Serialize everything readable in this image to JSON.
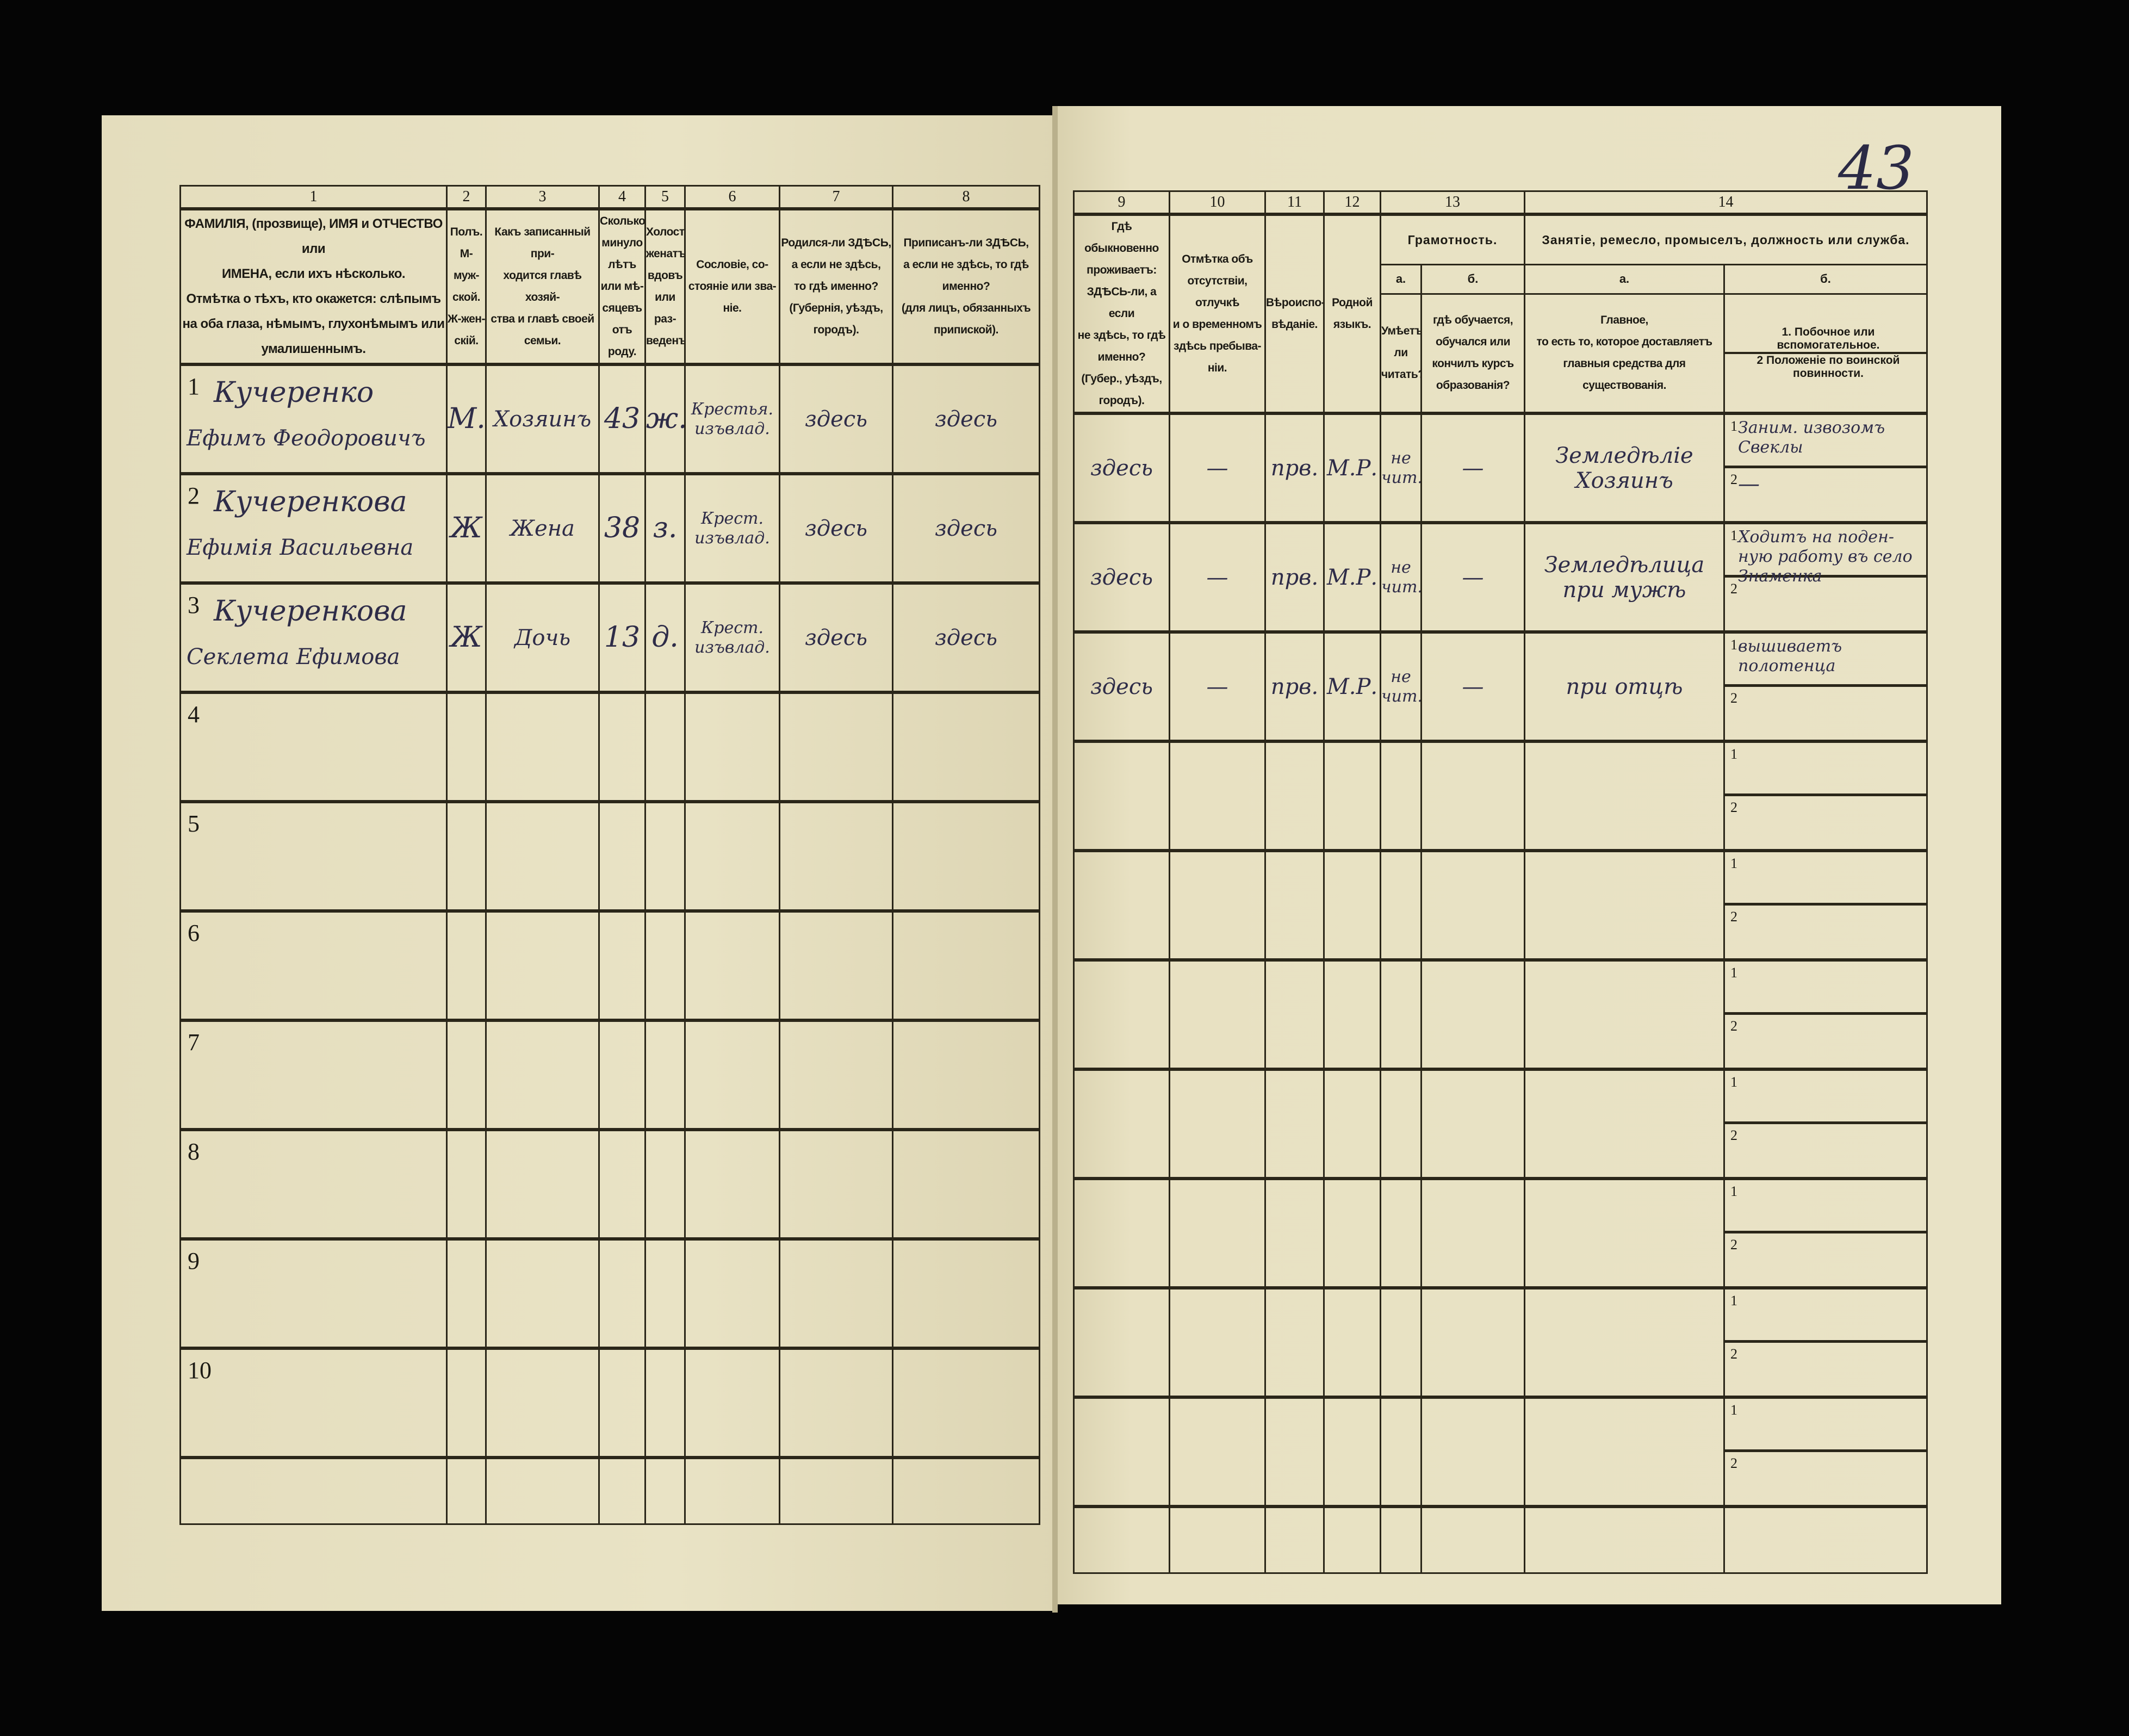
{
  "page_number": "43",
  "left_page": {
    "column_numbers": [
      "1",
      "2",
      "3",
      "4",
      "5",
      "6",
      "7",
      "8"
    ],
    "column_headers": [
      "ФАМИЛІЯ, (прозвище), ИМЯ и ОТЧЕСТВО или\nИМЕНА, если ихъ нѣсколько.\nОтмѣтка о тѣхъ, кто окажется: слѣпымъ\nна оба глаза, нѣмымъ, глухонѣмымъ или\nумалишеннымъ.",
      "Полъ.\nМ-муж-\nской.\nЖ-жен-\nскій.",
      "Какъ записанный при-\nходится главѣ хозяй-\nства и главѣ своей\nсемьи.",
      "Сколько\nминуло\nлѣтъ\nили мѣ-\nсяцевъ\nотъ роду.",
      "Холостъ,\nженатъ,\nвдовъ\nили раз-\nведенъ.",
      "Сословіе, со-\nстояніе или зва-\nніе.",
      "Родился-ли ЗДѢСЬ,\nа если не здѣсь,\nто гдѣ именно?\n(Губернія, уѣздъ, городъ).",
      "Приписанъ-ли ЗДѢСЬ,\nа если не здѣсь, то гдѣ\nименно?\n(для лицъ, обязанныхъ\nприпиской)."
    ]
  },
  "right_page": {
    "column_numbers": [
      "9",
      "10",
      "11",
      "12",
      "13",
      "14"
    ],
    "column_headers": {
      "c9": "Гдѣ обыкновенно\nпроживаетъ:\nЗДѢСЬ-ли, а если\nне здѣсь, то гдѣ\nименно?\n(Губер., уѣздъ, городъ).",
      "c10": "Отмѣтка объ\nотсутствіи, отлучкѣ\nи о временномъ\nздѣсь пребыва-\nніи.",
      "c11": "Вѣроиспо-\nвѣданіе.",
      "c12": "Родной\nязыкъ.",
      "c13_group": "Грамотность.",
      "c13a_letter": "а.",
      "c13b_letter": "б.",
      "c13a": "Умѣетъ-\nли\nчитать?",
      "c13b": "гдѣ обучается,\nобучался или\nкончилъ курсъ\nобразованія?",
      "c14_group": "Занятіе, ремесло, промыселъ, должность или служба.",
      "c14a_letter": "а.",
      "c14b_letter": "б.",
      "c14a": "Главное,\nто есть то, которое доставляетъ\nглавныя средства для существованія.",
      "c14b_1": "1.  Побочное или вспомогательное.",
      "c14b_2": "2  Положеніе по воинской повинности."
    }
  },
  "rows": [
    {
      "num": "1",
      "surname": "Кучеренко",
      "name": "Ефимъ Феодоровичъ",
      "sex": "М.",
      "relation": "Хозяинъ",
      "age": "43",
      "marital": "ж.",
      "estate": "Крестья.\nизъвлад.",
      "born": "здесь",
      "registered": "здесь",
      "residence": "здесь",
      "absence": "—",
      "religion": "прв.",
      "language": "М.Р.",
      "literacy": "не чит.",
      "education": "—",
      "occupation_main": "Земледѣліе\nХозяинъ",
      "sub1_label": "1",
      "occupation_side": "Заним. извозомъ\nСвеклы",
      "sub2_label": "2",
      "military": "—"
    },
    {
      "num": "2",
      "surname": "Кучеренкова",
      "name": "Ефимія Васильевна",
      "sex": "Ж",
      "relation": "Жена",
      "age": "38",
      "marital": "з.",
      "estate": "Крест.\nизъвлад.",
      "born": "здесь",
      "registered": "здесь",
      "residence": "здесь",
      "absence": "—",
      "religion": "прв.",
      "language": "М.Р.",
      "literacy": "не чит.",
      "education": "—",
      "occupation_main": "Земледѣлица\nпри мужѣ",
      "sub1_label": "1",
      "occupation_side": "Ходитъ на поден-\nную работу въ село\nЗнаменка",
      "sub2_label": "2",
      "military": ""
    },
    {
      "num": "3",
      "surname": "Кучеренкова",
      "name": "Секлета Ефимова",
      "sex": "Ж",
      "relation": "Дочь",
      "age": "13",
      "marital": "д.",
      "estate": "Крест.\nизъвлад.",
      "born": "здесь",
      "registered": "здесь",
      "residence": "здесь",
      "absence": "—",
      "religion": "прв.",
      "language": "М.Р.",
      "literacy": "не чит.",
      "education": "—",
      "occupation_main": "при отцѣ",
      "sub1_label": "1",
      "occupation_side": "вышиваетъ\nполотенца",
      "sub2_label": "2",
      "military": ""
    },
    {
      "num": "4",
      "sub1_label": "1",
      "sub2_label": "2"
    },
    {
      "num": "5",
      "sub1_label": "1",
      "sub2_label": "2"
    },
    {
      "num": "6",
      "sub1_label": "1",
      "sub2_label": "2"
    },
    {
      "num": "7",
      "sub1_label": "1",
      "sub2_label": "2"
    },
    {
      "num": "8",
      "sub1_label": "1",
      "sub2_label": "2"
    },
    {
      "num": "9",
      "sub1_label": "1",
      "sub2_label": "2"
    },
    {
      "num": "10",
      "sub1_label": "1",
      "sub2_label": "2"
    }
  ],
  "colors": {
    "paper": "#e7e0c1",
    "ink_print": "#1c1a14",
    "ink_handwriting": "#2e2c48",
    "background": "#000000"
  }
}
